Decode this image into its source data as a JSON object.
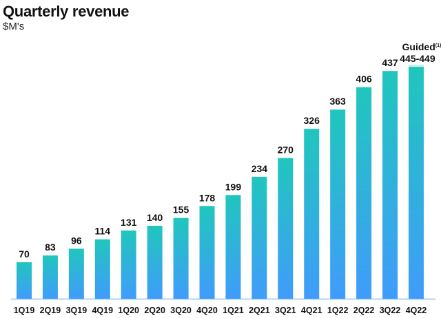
{
  "chart_data": {
    "type": "bar",
    "title": "Quarterly revenue",
    "subtitle": "$M's",
    "categories": [
      "1Q19",
      "2Q19",
      "3Q19",
      "4Q19",
      "1Q20",
      "2Q20",
      "3Q20",
      "4Q20",
      "1Q21",
      "2Q21",
      "3Q21",
      "4Q21",
      "1Q22",
      "2Q22",
      "3Q22",
      "4Q22"
    ],
    "values": [
      70,
      83,
      96,
      114,
      131,
      140,
      155,
      178,
      199,
      234,
      270,
      326,
      363,
      406,
      437,
      null
    ],
    "guidance": {
      "category": "4Q22",
      "label": "Guided",
      "footnote": "(1)",
      "range_label": "445-449",
      "low": 445,
      "high": 449
    },
    "ylim": [
      0,
      460
    ],
    "grid": false,
    "colors": {
      "bar_top": "#20c6bd",
      "bar_bottom": "#409cfb",
      "guidance_band": "#c8f0ee",
      "baseline": "#8fc3f5"
    }
  }
}
